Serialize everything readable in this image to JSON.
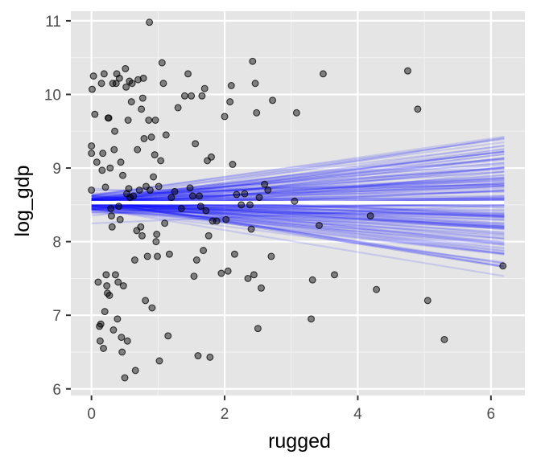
{
  "chart_data": {
    "type": "scatter",
    "title": "",
    "xlabel": "rugged",
    "ylabel": "log_gdp",
    "xlim": [
      -0.31,
      6.51
    ],
    "ylim": [
      5.91,
      11.13
    ],
    "x_ticks": [
      0,
      2,
      4,
      6
    ],
    "y_ticks": [
      6,
      7,
      8,
      9,
      10,
      11
    ],
    "x_tick_labels": [
      "0",
      "2",
      "4",
      "6"
    ],
    "y_tick_labels": [
      "6",
      "7",
      "8",
      "9",
      "10",
      "11"
    ],
    "grid": true,
    "legend": "none",
    "colors": {
      "panel": "#e5e5e5",
      "grid_major": "#ffffff",
      "grid_minor": "#f2f2f2",
      "points": "#000000",
      "posterior_lines": "#0000ff",
      "mean_line": "#ffffff"
    },
    "points": [
      [
        0.0,
        8.7
      ],
      [
        0.0,
        9.3
      ],
      [
        0.0,
        9.2
      ],
      [
        0.01,
        10.07
      ],
      [
        0.03,
        10.25
      ],
      [
        0.05,
        9.73
      ],
      [
        0.08,
        9.08
      ],
      [
        0.1,
        7.45
      ],
      [
        0.12,
        6.85
      ],
      [
        0.13,
        6.65
      ],
      [
        0.14,
        6.88
      ],
      [
        0.15,
        10.15
      ],
      [
        0.16,
        8.97
      ],
      [
        0.17,
        9.2
      ],
      [
        0.18,
        6.55
      ],
      [
        0.19,
        10.28
      ],
      [
        0.2,
        7.05
      ],
      [
        0.21,
        8.74
      ],
      [
        0.22,
        7.55
      ],
      [
        0.23,
        7.4
      ],
      [
        0.24,
        7.3
      ],
      [
        0.25,
        9.68
      ],
      [
        0.26,
        9.68
      ],
      [
        0.27,
        7.27
      ],
      [
        0.28,
        9.0
      ],
      [
        0.29,
        8.45
      ],
      [
        0.3,
        8.35
      ],
      [
        0.31,
        8.2
      ],
      [
        0.32,
        10.15
      ],
      [
        0.33,
        6.8
      ],
      [
        0.34,
        9.25
      ],
      [
        0.35,
        9.5
      ],
      [
        0.36,
        7.55
      ],
      [
        0.37,
        10.15
      ],
      [
        0.38,
        10.28
      ],
      [
        0.39,
        6.95
      ],
      [
        0.4,
        7.45
      ],
      [
        0.41,
        8.48
      ],
      [
        0.42,
        10.22
      ],
      [
        0.43,
        8.3
      ],
      [
        0.44,
        9.08
      ],
      [
        0.45,
        6.7
      ],
      [
        0.46,
        6.5
      ],
      [
        0.47,
        8.9
      ],
      [
        0.48,
        7.4
      ],
      [
        0.5,
        6.15
      ],
      [
        0.51,
        10.35
      ],
      [
        0.52,
        10.1
      ],
      [
        0.53,
        8.65
      ],
      [
        0.54,
        6.65
      ],
      [
        0.55,
        9.65
      ],
      [
        0.56,
        8.72
      ],
      [
        0.57,
        10.18
      ],
      [
        0.58,
        8.6
      ],
      [
        0.6,
        9.9
      ],
      [
        0.61,
        10.15
      ],
      [
        0.63,
        8.62
      ],
      [
        0.65,
        7.75
      ],
      [
        0.66,
        6.25
      ],
      [
        0.68,
        8.15
      ],
      [
        0.69,
        9.25
      ],
      [
        0.7,
        10.2
      ],
      [
        0.72,
        8.7
      ],
      [
        0.74,
        8.2
      ],
      [
        0.75,
        9.8
      ],
      [
        0.76,
        8.08
      ],
      [
        0.77,
        9.95
      ],
      [
        0.78,
        10.22
      ],
      [
        0.79,
        9.4
      ],
      [
        0.81,
        7.2
      ],
      [
        0.82,
        8.75
      ],
      [
        0.84,
        7.8
      ],
      [
        0.86,
        9.65
      ],
      [
        0.87,
        10.98
      ],
      [
        0.88,
        8.7
      ],
      [
        0.9,
        9.42
      ],
      [
        0.91,
        7.1
      ],
      [
        0.93,
        8.88
      ],
      [
        0.95,
        9.18
      ],
      [
        0.96,
        9.65
      ],
      [
        0.97,
        8.0
      ],
      [
        0.98,
        8.1
      ],
      [
        0.99,
        7.8
      ],
      [
        1.01,
        8.75
      ],
      [
        1.02,
        6.38
      ],
      [
        1.04,
        9.1
      ],
      [
        1.06,
        10.43
      ],
      [
        1.08,
        10.15
      ],
      [
        1.1,
        8.25
      ],
      [
        1.12,
        9.45
      ],
      [
        1.15,
        6.72
      ],
      [
        1.17,
        7.83
      ],
      [
        1.2,
        8.6
      ],
      [
        1.25,
        8.68
      ],
      [
        1.3,
        9.82
      ],
      [
        1.35,
        8.45
      ],
      [
        1.4,
        9.98
      ],
      [
        1.45,
        10.28
      ],
      [
        1.48,
        8.73
      ],
      [
        1.5,
        9.98
      ],
      [
        1.52,
        8.62
      ],
      [
        1.54,
        7.53
      ],
      [
        1.56,
        9.33
      ],
      [
        1.58,
        7.75
      ],
      [
        1.6,
        6.45
      ],
      [
        1.62,
        8.62
      ],
      [
        1.64,
        8.48
      ],
      [
        1.66,
        9.98
      ],
      [
        1.68,
        7.88
      ],
      [
        1.7,
        10.08
      ],
      [
        1.72,
        8.42
      ],
      [
        1.74,
        9.1
      ],
      [
        1.76,
        8.08
      ],
      [
        1.78,
        6.43
      ],
      [
        1.8,
        9.15
      ],
      [
        1.82,
        8.28
      ],
      [
        1.88,
        8.28
      ],
      [
        1.95,
        7.57
      ],
      [
        2.0,
        9.7
      ],
      [
        2.02,
        8.3
      ],
      [
        2.05,
        7.6
      ],
      [
        2.08,
        9.9
      ],
      [
        2.1,
        10.12
      ],
      [
        2.12,
        9.05
      ],
      [
        2.15,
        7.83
      ],
      [
        2.18,
        8.64
      ],
      [
        2.25,
        8.5
      ],
      [
        2.3,
        8.65
      ],
      [
        2.35,
        7.5
      ],
      [
        2.38,
        8.5
      ],
      [
        2.4,
        8.17
      ],
      [
        2.42,
        10.45
      ],
      [
        2.44,
        7.55
      ],
      [
        2.46,
        10.15
      ],
      [
        2.48,
        9.75
      ],
      [
        2.5,
        6.82
      ],
      [
        2.52,
        8.6
      ],
      [
        2.55,
        7.37
      ],
      [
        2.6,
        8.78
      ],
      [
        2.65,
        8.7
      ],
      [
        2.7,
        7.8
      ],
      [
        2.72,
        9.92
      ],
      [
        3.05,
        8.55
      ],
      [
        3.08,
        9.75
      ],
      [
        3.3,
        6.95
      ],
      [
        3.32,
        7.48
      ],
      [
        3.42,
        8.22
      ],
      [
        3.48,
        10.28
      ],
      [
        3.65,
        7.55
      ],
      [
        4.19,
        8.35
      ],
      [
        4.28,
        7.35
      ],
      [
        4.75,
        10.32
      ],
      [
        4.9,
        9.8
      ],
      [
        5.05,
        7.2
      ],
      [
        5.3,
        6.67
      ],
      [
        6.18,
        7.67
      ]
    ],
    "posterior_intercept": {
      "mean": 8.53,
      "sd": 0.07
    },
    "posterior_slope": {
      "mean": 0.0,
      "sd": 0.085
    },
    "posterior_draws": 150,
    "x_line_range": [
      0,
      6.2
    ]
  }
}
